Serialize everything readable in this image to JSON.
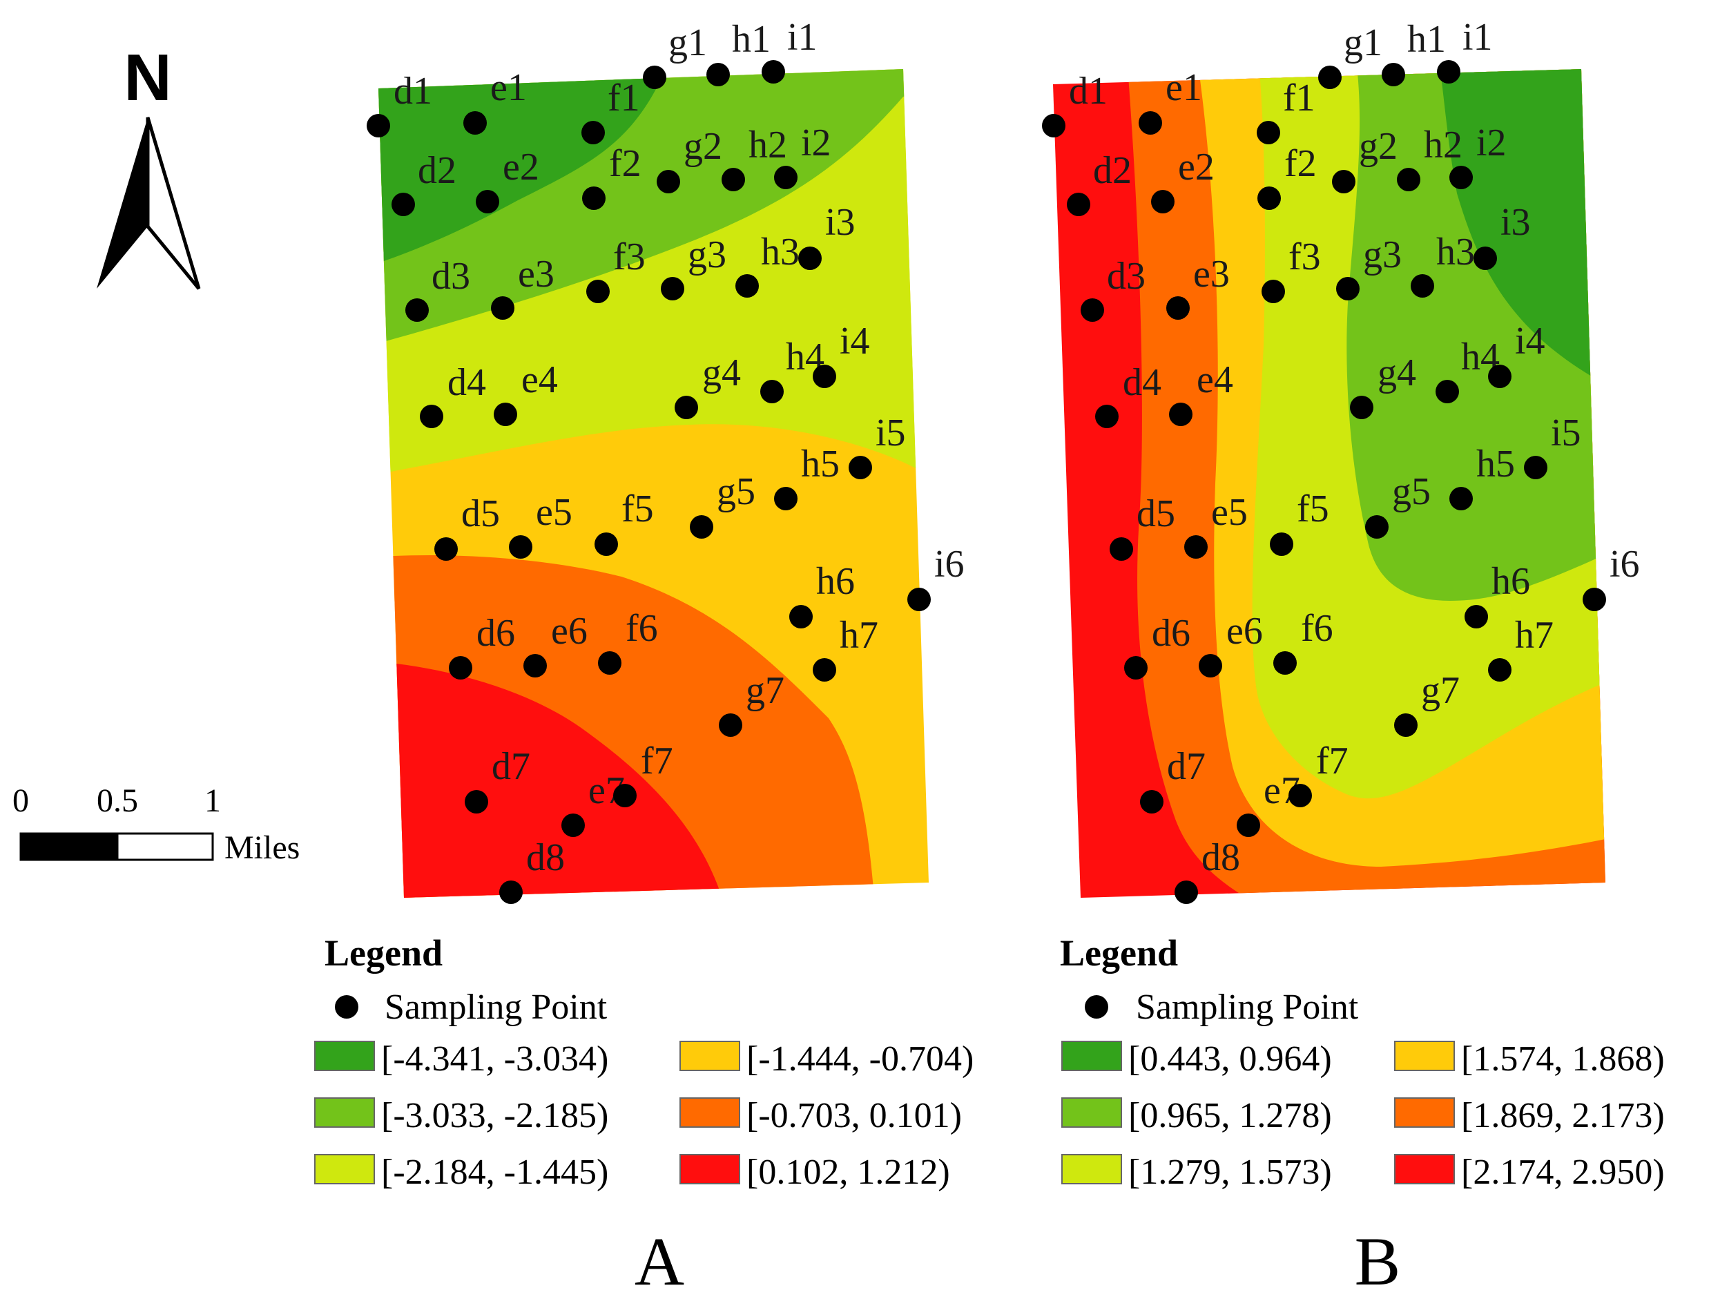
{
  "north_label": "N",
  "scale": {
    "ticks": [
      "0",
      "0.5",
      "1"
    ],
    "unit": "Miles"
  },
  "colors": {
    "c1": "#33A31B",
    "c2": "#73C31A",
    "c3": "#CFE80E",
    "c4": "#FFCB0A",
    "c5": "#FF6A00",
    "c6": "#FF0E0E"
  },
  "point_labels": [
    "d1",
    "e1",
    "f1",
    "g1",
    "h1",
    "i1",
    "d2",
    "e2",
    "f2",
    "g2",
    "h2",
    "i2",
    "d3",
    "e3",
    "f3",
    "g3",
    "h3",
    "i3",
    "d4",
    "e4",
    "g4",
    "h4",
    "i4",
    "d5",
    "e5",
    "f5",
    "g5",
    "h5",
    "i5",
    "d6",
    "e6",
    "f6",
    "h6",
    "i6",
    "h7",
    "g7",
    "d7",
    "e7",
    "f7",
    "d8"
  ],
  "panels": [
    {
      "id": "A",
      "letter": "A",
      "legend_title": "Legend",
      "sampling_label": "Sampling Point",
      "classes": [
        "[-4.341,  -3.034)",
        "[-3.033,  -2.185)",
        "[-2.184,  -1.445)",
        "[-1.444,  -0.704)",
        "[-0.703,  0.101)",
        "[0.102,  1.212)"
      ]
    },
    {
      "id": "B",
      "letter": "B",
      "legend_title": "Legend",
      "sampling_label": "Sampling Point",
      "classes": [
        "[0.443,  0.964)",
        "[0.965,  1.278)",
        "[1.279,  1.573)",
        "[1.574,  1.868)",
        "[1.869,  2.173)",
        "[2.174,  2.950)"
      ]
    }
  ]
}
